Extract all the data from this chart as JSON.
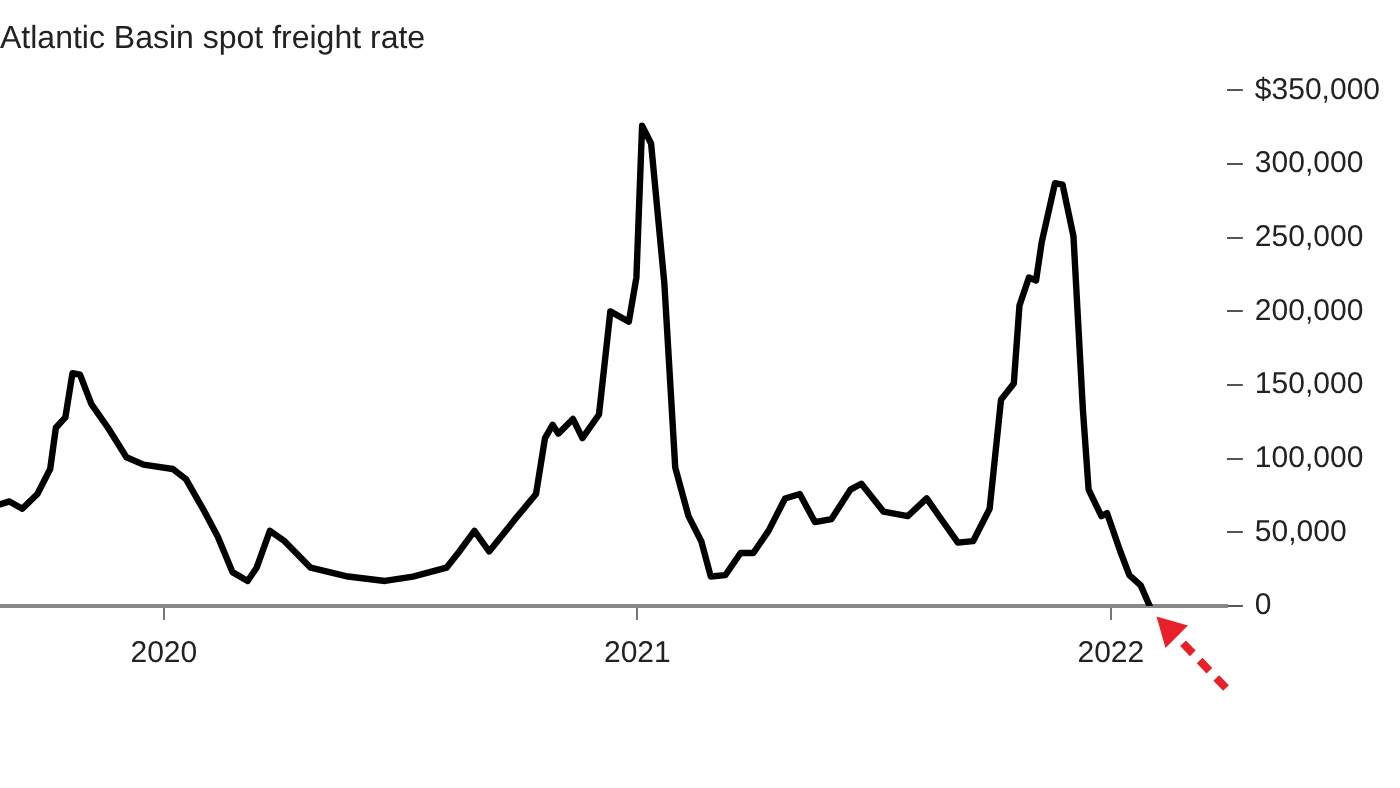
{
  "chart_data": {
    "type": "line",
    "title": "Atlantic Basin spot freight rate",
    "x": [
      2019.654,
      2019.674,
      2019.701,
      2019.733,
      2019.76,
      2019.772,
      2019.792,
      2019.807,
      2019.823,
      2019.847,
      2019.882,
      2019.921,
      2019.957,
      2020.019,
      2020.047,
      2020.086,
      2020.114,
      2020.145,
      2020.177,
      2020.196,
      2020.224,
      2020.255,
      2020.31,
      2020.389,
      2020.467,
      2020.526,
      2020.597,
      2020.624,
      2020.656,
      2020.687,
      2020.742,
      2020.786,
      2020.805,
      2020.821,
      2020.833,
      2020.864,
      2020.884,
      2020.919,
      2020.943,
      2020.982,
      2020.998,
      2021.01,
      2021.029,
      2021.057,
      2021.08,
      2021.108,
      2021.135,
      2021.155,
      2021.186,
      2021.218,
      2021.245,
      2021.277,
      2021.312,
      2021.343,
      2021.375,
      2021.41,
      2021.45,
      2021.473,
      2021.52,
      2021.571,
      2021.611,
      2021.646,
      2021.677,
      2021.709,
      2021.744,
      2021.768,
      2021.795,
      2021.807,
      2021.827,
      2021.842,
      2021.854,
      2021.882,
      2021.898,
      2021.921,
      2021.941,
      2021.953,
      2021.98,
      2021.992,
      2022.02,
      2022.039,
      2022.063,
      2022.082
    ],
    "series": [
      {
        "color": "#000000",
        "values": [
          69000,
          71000,
          66000,
          76000,
          93000,
          121000,
          128000,
          158000,
          157000,
          137000,
          121000,
          101000,
          96000,
          93000,
          86000,
          64000,
          47000,
          23000,
          17000,
          26000,
          51000,
          44000,
          26000,
          20000,
          17000,
          20000,
          26000,
          37000,
          51000,
          37000,
          59000,
          76000,
          114000,
          123000,
          117000,
          127000,
          114000,
          130000,
          200000,
          193000,
          223000,
          326000,
          314000,
          219000,
          94000,
          61000,
          44000,
          20000,
          21000,
          36000,
          36000,
          51000,
          73000,
          76000,
          57000,
          59000,
          79000,
          83000,
          64000,
          61000,
          73000,
          57000,
          43000,
          44000,
          66000,
          140000,
          151000,
          204000,
          223000,
          221000,
          247000,
          287000,
          286000,
          251000,
          133000,
          79000,
          61000,
          63000,
          37000,
          21000,
          14000,
          0
        ]
      }
    ],
    "xlim": [
      2019.654,
      2022.245
    ],
    "xticks": [
      2020,
      2021,
      2022
    ],
    "ylim": [
      0,
      350000
    ],
    "yticks": [
      {
        "value": 0,
        "label": "0"
      },
      {
        "value": 50000,
        "label": "50,000"
      },
      {
        "value": 100000,
        "label": "100,000"
      },
      {
        "value": 150000,
        "label": "150,000"
      },
      {
        "value": 200000,
        "label": "200,000"
      },
      {
        "value": 250000,
        "label": "250,000"
      },
      {
        "value": 300000,
        "label": "300,000"
      },
      {
        "value": 350000,
        "label": "$350,000"
      }
    ],
    "grid": false,
    "legend": false,
    "marker": "none",
    "line_style": "solid"
  }
}
